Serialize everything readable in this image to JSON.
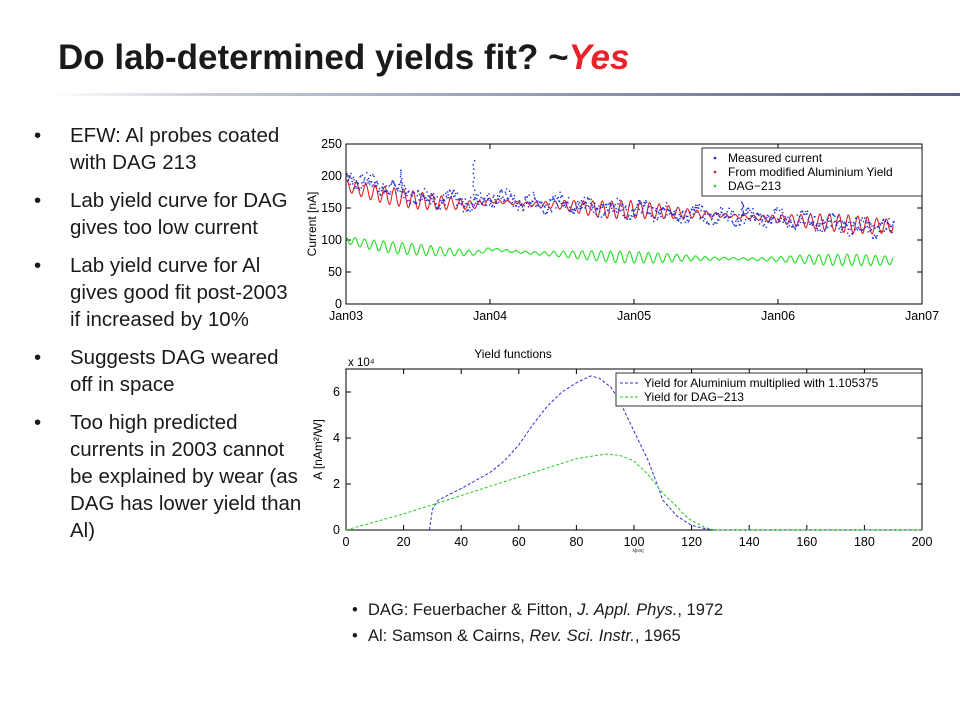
{
  "slide": {
    "title": "Do lab-determined yields fit? ~",
    "title_highlight": "Yes",
    "highlight_color": "#e8222a",
    "bullets": [
      "EFW: Al probes coated with DAG 213",
      "Lab yield curve for DAG gives too low current",
      "Lab yield curve for Al gives good fit post-2003 if increased by 10%",
      "Suggests DAG weared off in space",
      "Too high predicted currents in 2003 cannot be explained by wear (as DAG has lower yield than Al)"
    ],
    "references": [
      {
        "pre": "DAG: Feuerbacher & Fitton, ",
        "journal": "J. Appl. Phys.",
        "post": ", 1972"
      },
      {
        "pre": "Al: Samson & Cairns, ",
        "journal": "Rev. Sci. Instr.",
        "post": ", 1965"
      }
    ]
  },
  "chart_data": [
    {
      "type": "line",
      "title": "",
      "xlabel": "",
      "ylabel": "Current [nA]",
      "x_ticks": [
        "Jan03",
        "Jan04",
        "Jan05",
        "Jan06",
        "Jan07"
      ],
      "y_ticks": [
        "0",
        "50",
        "100",
        "150",
        "200",
        "250"
      ],
      "xlim": [
        "2003-01-01",
        "2007-01-01"
      ],
      "ylim": [
        0,
        250
      ],
      "grid": false,
      "legend_position": "top-right",
      "series": [
        {
          "name": "Measured current",
          "color": "#1f2bd6",
          "style": "dots",
          "x": [
            "2003-01-01",
            "2003-03-01",
            "2003-05-01",
            "2003-07-01",
            "2003-09-01",
            "2003-11-01",
            "2003-12-01",
            "2004-01-01",
            "2004-03-01",
            "2004-05-01",
            "2004-07-01",
            "2004-09-01",
            "2004-11-01",
            "2005-01-01",
            "2005-03-01",
            "2005-05-01",
            "2005-07-01",
            "2005-09-01",
            "2005-11-01",
            "2006-01-01",
            "2006-03-01",
            "2006-05-01",
            "2006-07-01",
            "2006-09-01",
            "2006-10-20"
          ],
          "y": [
            200,
            190,
            180,
            170,
            165,
            160,
            158,
            170,
            162,
            158,
            160,
            155,
            150,
            150,
            145,
            142,
            140,
            138,
            136,
            135,
            132,
            128,
            123,
            120,
            120
          ],
          "spikes": [
            {
              "x": "2003-11-20",
              "y": 225
            },
            {
              "x": "2003-05-20",
              "y": 210
            },
            {
              "x": "2005-10-01",
              "y": 160
            }
          ]
        },
        {
          "name": "From modified Aluminium Yield",
          "color": "#e02020",
          "style": "oscillating",
          "x": [
            "2003-01-01",
            "2003-03-01",
            "2003-05-01",
            "2003-07-01",
            "2003-09-01",
            "2003-11-01",
            "2003-12-01",
            "2004-01-01",
            "2004-03-01",
            "2004-05-01",
            "2004-07-01",
            "2004-09-01",
            "2004-11-01",
            "2005-01-01",
            "2005-03-01",
            "2005-05-01",
            "2005-07-01",
            "2005-09-01",
            "2005-11-01",
            "2006-01-01",
            "2006-03-01",
            "2006-05-01",
            "2006-07-01",
            "2006-09-01",
            "2006-10-20"
          ],
          "y": [
            185,
            175,
            168,
            162,
            158,
            155,
            155,
            162,
            158,
            155,
            155,
            150,
            147,
            148,
            145,
            142,
            140,
            138,
            135,
            133,
            130,
            128,
            125,
            122,
            122
          ]
        },
        {
          "name": "DAG−213",
          "color": "#22e022",
          "style": "oscillating",
          "x": [
            "2003-01-01",
            "2003-03-01",
            "2003-05-01",
            "2003-07-01",
            "2003-09-01",
            "2003-11-01",
            "2003-12-01",
            "2004-01-01",
            "2004-03-01",
            "2004-05-01",
            "2004-07-01",
            "2004-09-01",
            "2004-11-01",
            "2005-01-01",
            "2005-03-01",
            "2005-05-01",
            "2005-07-01",
            "2005-09-01",
            "2005-11-01",
            "2006-01-01",
            "2006-03-01",
            "2006-05-01",
            "2006-07-01",
            "2006-09-01",
            "2006-10-20"
          ],
          "y": [
            100,
            93,
            88,
            85,
            82,
            80,
            80,
            86,
            82,
            79,
            78,
            76,
            74,
            73,
            72,
            72,
            71,
            71,
            70,
            70,
            70,
            69,
            69,
            68,
            68
          ]
        }
      ]
    },
    {
      "type": "line",
      "title": "Yield functions",
      "xlabel": "λ[nm]",
      "ylabel": "A [nAm²/W]",
      "axis_multiplier": "x 10⁴",
      "x_ticks": [
        "0",
        "20",
        "40",
        "60",
        "80",
        "100",
        "120",
        "140",
        "160",
        "180",
        "200"
      ],
      "y_ticks": [
        "0",
        "2",
        "4",
        "6"
      ],
      "xlim": [
        0,
        200
      ],
      "ylim": [
        0,
        7
      ],
      "grid": false,
      "legend_position": "top-right",
      "series": [
        {
          "name": "Yield for Aluminium multiplied with 1.105375",
          "color": "#3030d0",
          "style": "dashed",
          "x": [
            29,
            30,
            32,
            40,
            50,
            55,
            60,
            65,
            70,
            75,
            80,
            85,
            88,
            92,
            95,
            100,
            105,
            108,
            110,
            115,
            120,
            125,
            128,
            200
          ],
          "y": [
            0,
            0.9,
            1.3,
            1.8,
            2.5,
            3.0,
            3.7,
            4.6,
            5.4,
            6.0,
            6.4,
            6.7,
            6.6,
            6.2,
            5.6,
            4.3,
            3.0,
            2.0,
            1.3,
            0.6,
            0.2,
            0.05,
            0,
            0
          ]
        },
        {
          "name": "Yield for DAG−213",
          "color": "#22cc22",
          "style": "dashed",
          "x": [
            0,
            20,
            40,
            60,
            80,
            90,
            95,
            100,
            105,
            110,
            115,
            118,
            120,
            125,
            128,
            200
          ],
          "y": [
            0,
            0.7,
            1.5,
            2.3,
            3.1,
            3.3,
            3.25,
            3.0,
            2.4,
            1.6,
            1.0,
            0.6,
            0.4,
            0.1,
            0,
            0
          ]
        }
      ]
    }
  ]
}
